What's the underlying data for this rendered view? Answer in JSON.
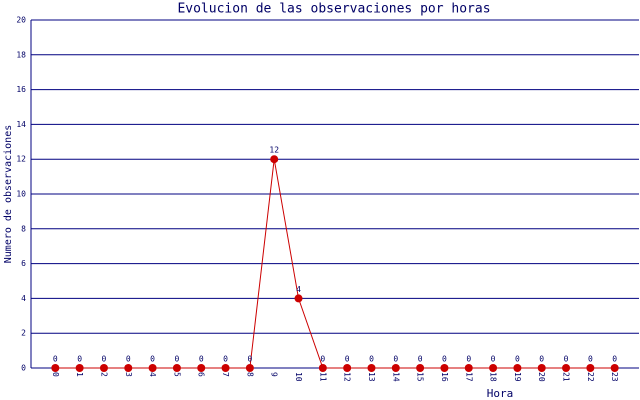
{
  "chart_data": {
    "type": "line",
    "title": "Evolucion de las observaciones por horas",
    "x_label": "Hora",
    "y_label": "Numero de observaciones",
    "categories": [
      "0",
      "1",
      "2",
      "3",
      "4",
      "5",
      "6",
      "7",
      "8",
      "9",
      "10",
      "11",
      "12",
      "13",
      "14",
      "15",
      "16",
      "17",
      "18",
      "19",
      "20",
      "21",
      "22",
      "23"
    ],
    "series": [
      {
        "name": "observaciones",
        "color": "#cc0000",
        "values": [
          0,
          0,
          0,
          0,
          0,
          0,
          0,
          0,
          0,
          12,
          4,
          0,
          0,
          0,
          0,
          0,
          0,
          0,
          0,
          0,
          0,
          0,
          0,
          0
        ]
      }
    ],
    "ylim": [
      0,
      20
    ],
    "yticks": [
      0,
      2,
      4,
      6,
      8,
      10,
      12,
      14,
      16,
      18,
      20
    ],
    "grid": true,
    "grid_color": "#000080"
  }
}
